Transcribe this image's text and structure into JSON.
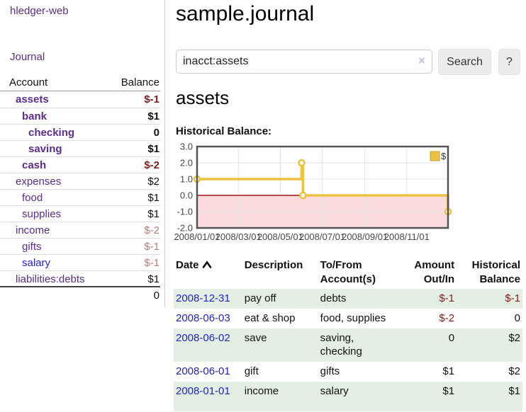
{
  "sidebar": {
    "brand": "hledger-web",
    "nav": {
      "journal": "Journal"
    },
    "table": {
      "account_header": "Account",
      "balance_header": "Balance",
      "accounts": [
        {
          "name": "assets",
          "balance": "$-1",
          "level": 1,
          "bold": true
        },
        {
          "name": "bank",
          "balance": "$1",
          "level": 2,
          "bold": true
        },
        {
          "name": "checking",
          "balance": "0",
          "level": 3,
          "bold": true
        },
        {
          "name": "saving",
          "balance": "$1",
          "level": 3,
          "bold": true
        },
        {
          "name": "cash",
          "balance": "$-2",
          "level": 2,
          "bold": true
        },
        {
          "name": "expenses",
          "balance": "$2",
          "level": 1,
          "bold": false
        },
        {
          "name": "food",
          "balance": "$1",
          "level": 2,
          "bold": false
        },
        {
          "name": "supplies",
          "balance": "$1",
          "level": 2,
          "bold": false
        },
        {
          "name": "income",
          "balance": "$-2",
          "level": 1,
          "bold": false
        },
        {
          "name": "gifts",
          "balance": "$-1",
          "level": 2,
          "bold": false
        },
        {
          "name": "salary",
          "balance": "$-1",
          "level": 2,
          "bold": false,
          "unvisited": true
        },
        {
          "name": "liabilities:debts",
          "balance": "$1",
          "level": 1,
          "bold": false
        }
      ],
      "total": "0"
    }
  },
  "main": {
    "title": "sample.journal",
    "search": {
      "value": "inacct:assets",
      "clear_icon": "×",
      "button_label": "Search",
      "help_label": "?"
    },
    "account_heading": "assets",
    "chart_title": "Historical Balance:"
  },
  "chart_data": {
    "type": "line",
    "style": "step",
    "title": "Historical Balance",
    "series": [
      {
        "name": "$",
        "color": "#edc240",
        "points": [
          [
            "2008-01-01",
            1
          ],
          [
            "2008-06-01",
            2
          ],
          [
            "2008-06-03",
            0
          ],
          [
            "2008-12-31",
            -1
          ]
        ]
      }
    ],
    "xrange": [
      "2008-01-01",
      "2008-12-31"
    ],
    "ylim": [
      -2,
      3
    ],
    "yticks": [
      "3.0",
      "2.0",
      "1.0",
      "0.0",
      "-1.0",
      "-2.0"
    ],
    "xticks": [
      "2008/01/01",
      "2008/03/01",
      "2008/05/01",
      "2008/07/01",
      "2008/09/01",
      "2008/11/01"
    ],
    "grid": true,
    "legend_position": "top-right",
    "negative_region_fill": "#fbdbdb",
    "zero_line_color": "#a31212",
    "grid_color": "#e4e4e4",
    "border_color": "#545454",
    "tick_label_color": "#474747"
  },
  "register": {
    "columns": [
      {
        "lines": [
          "Date"
        ],
        "sorted": true,
        "align": "left"
      },
      {
        "lines": [
          "Description"
        ],
        "align": "left"
      },
      {
        "lines": [
          "To/From",
          "Account(s)"
        ],
        "align": "left"
      },
      {
        "lines": [
          "Amount",
          "Out/In"
        ],
        "align": "right"
      },
      {
        "lines": [
          "Historical",
          "Balance"
        ],
        "align": "right"
      }
    ],
    "sort": {
      "column": "Date",
      "direction": "ascending",
      "icon": "chevron-up-icon"
    },
    "rows": [
      {
        "date": "2008-12-31",
        "description": "pay off",
        "accounts": [
          "debts"
        ],
        "amount": "$-1",
        "balance": "$-1"
      },
      {
        "date": "2008-06-03",
        "description": "eat & shop",
        "accounts": [
          "food, supplies"
        ],
        "amount": "$-2",
        "balance": "0"
      },
      {
        "date": "2008-06-02",
        "description": "save",
        "accounts": [
          "saving,",
          "checking"
        ],
        "amount": "0",
        "balance": "$2"
      },
      {
        "date": "2008-06-01",
        "description": "gift",
        "accounts": [
          "gifts"
        ],
        "amount": "$1",
        "balance": "$2"
      },
      {
        "date": "2008-01-01",
        "description": "income",
        "accounts": [
          "salary"
        ],
        "amount": "$1",
        "balance": "$1"
      }
    ]
  },
  "colors": {
    "link_purple": "#5c2d91",
    "link_blue": "#2323cc",
    "negative_strong": "#8b1a1a",
    "negative_soft": "#bb7b7b",
    "row_green": "#e2efe2",
    "series_yellow": "#edc240",
    "chart_negative_bg": "#fbdbdb",
    "chart_zero_line": "#a31212",
    "button_bg": "#ececec"
  }
}
